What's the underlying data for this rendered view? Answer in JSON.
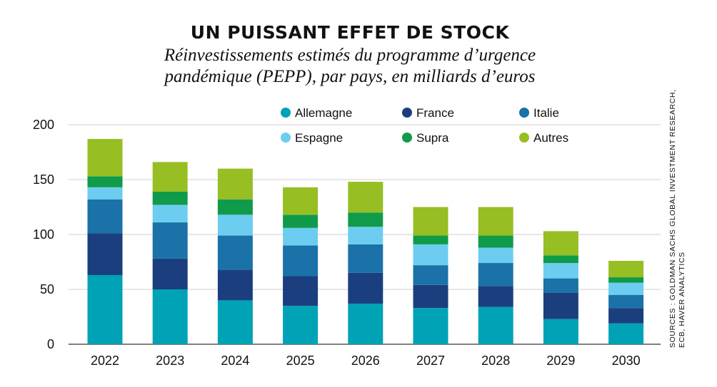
{
  "title": "UN PUISSANT EFFET DE STOCK",
  "subtitle_line1": "Réinvestissements estimés du programme d’urgence",
  "subtitle_line2": "pandémique (PEPP), par pays, en milliards d’euros",
  "source_line1": "SOURCES : GOLDMAN SACHS GLOBAL INVESTMENT RESEARCH,",
  "source_line2": "ECB, HAVER ANALYTICS",
  "chart_data": {
    "type": "bar",
    "stacked": true,
    "title": "UN PUISSANT EFFET DE STOCK",
    "categories": [
      "2022",
      "2023",
      "2024",
      "2025",
      "2026",
      "2027",
      "2028",
      "2029",
      "2030"
    ],
    "ylim": [
      0,
      200
    ],
    "yticks": [
      0,
      50,
      100,
      150,
      200
    ],
    "grid": true,
    "legend_position": "top",
    "series": [
      {
        "name": "Allemagne",
        "color": "#00a2b6",
        "values": [
          63,
          50,
          40,
          35,
          37,
          33,
          34,
          23,
          19
        ]
      },
      {
        "name": "France",
        "color": "#1b3f7e",
        "values": [
          38,
          28,
          28,
          27,
          28,
          21,
          19,
          24,
          14
        ]
      },
      {
        "name": "Italie",
        "color": "#1a72a9",
        "values": [
          31,
          33,
          31,
          28,
          26,
          18,
          21,
          13,
          12
        ]
      },
      {
        "name": "Espagne",
        "color": "#6ccdf0",
        "values": [
          11,
          16,
          19,
          16,
          16,
          19,
          14,
          14,
          11
        ]
      },
      {
        "name": "Supra",
        "color": "#0f9b4a",
        "values": [
          10,
          12,
          14,
          12,
          13,
          8,
          11,
          7,
          5
        ]
      },
      {
        "name": "Autres",
        "color": "#97be23",
        "values": [
          34,
          27,
          28,
          25,
          28,
          26,
          26,
          22,
          15
        ]
      }
    ]
  }
}
